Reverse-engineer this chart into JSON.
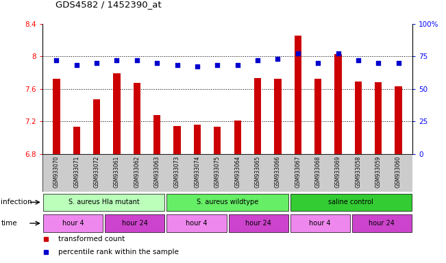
{
  "title": "GDS4582 / 1452390_at",
  "samples": [
    "GSM933070",
    "GSM933071",
    "GSM933072",
    "GSM933061",
    "GSM933062",
    "GSM933063",
    "GSM933073",
    "GSM933074",
    "GSM933075",
    "GSM933064",
    "GSM933065",
    "GSM933066",
    "GSM933067",
    "GSM933068",
    "GSM933069",
    "GSM933058",
    "GSM933059",
    "GSM933060"
  ],
  "bar_values": [
    7.72,
    7.13,
    7.47,
    7.79,
    7.67,
    7.28,
    7.14,
    7.16,
    7.13,
    7.21,
    7.73,
    7.72,
    8.25,
    7.72,
    8.03,
    7.69,
    7.68,
    7.63
  ],
  "dot_values": [
    72,
    68,
    70,
    72,
    72,
    70,
    68,
    67,
    68,
    68,
    72,
    73,
    77,
    70,
    77,
    72,
    70,
    70
  ],
  "ylim_left": [
    6.8,
    8.4
  ],
  "ylim_right": [
    0,
    100
  ],
  "yticks_left": [
    6.8,
    7.2,
    7.6,
    8.0,
    8.4
  ],
  "ytick_labels_left": [
    "6.8",
    "7.2",
    "7.6",
    "8",
    "8.4"
  ],
  "yticks_right": [
    0,
    25,
    50,
    75,
    100
  ],
  "ytick_labels_right": [
    "0",
    "25",
    "50",
    "75",
    "100%"
  ],
  "bar_color": "#cc0000",
  "dot_color": "#0000cc",
  "bar_bottom": 6.8,
  "bar_width": 0.35,
  "groups": [
    {
      "label": "S. aureus Hla mutant",
      "start": 0,
      "end": 6,
      "color": "#bbffbb"
    },
    {
      "label": "S. aureus wildtype",
      "start": 6,
      "end": 12,
      "color": "#66ee66"
    },
    {
      "label": "saline control",
      "start": 12,
      "end": 18,
      "color": "#33cc33"
    }
  ],
  "time_groups": [
    {
      "label": "hour 4",
      "start": 0,
      "end": 3,
      "color": "#ee88ee"
    },
    {
      "label": "hour 24",
      "start": 3,
      "end": 6,
      "color": "#cc44cc"
    },
    {
      "label": "hour 4",
      "start": 6,
      "end": 9,
      "color": "#ee88ee"
    },
    {
      "label": "hour 24",
      "start": 9,
      "end": 12,
      "color": "#cc44cc"
    },
    {
      "label": "hour 4",
      "start": 12,
      "end": 15,
      "color": "#ee88ee"
    },
    {
      "label": "hour 24",
      "start": 15,
      "end": 18,
      "color": "#cc44cc"
    }
  ],
  "legend_items": [
    {
      "label": "transformed count",
      "color": "#cc0000"
    },
    {
      "label": "percentile rank within the sample",
      "color": "#0000cc"
    }
  ],
  "infection_label": "infection",
  "time_label": "time",
  "background_color": "#ffffff",
  "plot_bg": "#ffffff",
  "tick_label_bg": "#cccccc",
  "gridline_ticks": [
    7.2,
    7.6,
    8.0
  ]
}
